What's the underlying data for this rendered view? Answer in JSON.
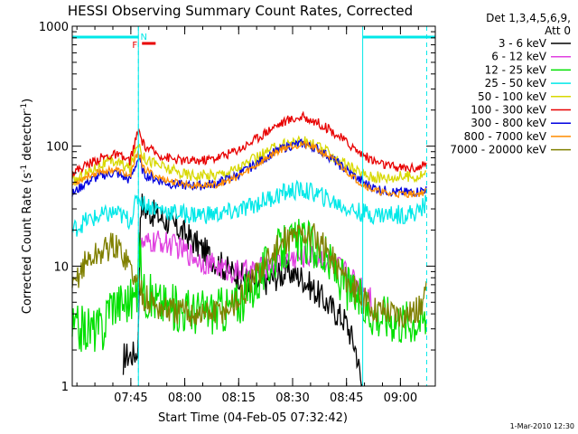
{
  "chart_data": {
    "type": "line",
    "title": "HESSI Observing Summary Count Rates, Corrected",
    "xlabel": "Start Time (04-Feb-05 07:32:42)",
    "ylabel_main": "Corrected Count Rate (s",
    "ylabel_sup1": "-1",
    "ylabel_mid": " detector",
    "ylabel_sup2": "-1",
    "ylabel_end": ")",
    "footer_date": "1-Mar-2010 12:30",
    "y_scale": "log",
    "ylim": [
      1,
      1000
    ],
    "xlim_minutes": [
      -4,
      97
    ],
    "x_tick_labels": [
      {
        "label": "07:45",
        "min": 12.3
      },
      {
        "label": "08:00",
        "min": 27.3
      },
      {
        "label": "08:15",
        "min": 42.3
      },
      {
        "label": "08:30",
        "min": 57.3
      },
      {
        "label": "08:45",
        "min": 72.3
      },
      {
        "label": "09:00",
        "min": 87.3
      }
    ],
    "y_tick_labels": [
      {
        "label": "1",
        "value": 1
      },
      {
        "label": "10",
        "value": 10
      },
      {
        "label": "100",
        "value": 100
      },
      {
        "label": "1000",
        "value": 1000
      }
    ],
    "legend": {
      "placement": "right",
      "header1": "Det 1,3,4,5,6,9,",
      "header2": "Att 0",
      "entries": [
        {
          "label": "3 - 6 keV",
          "color": "#000000"
        },
        {
          "label": "6 - 12 keV",
          "color": "#e040e0"
        },
        {
          "label": "12 - 25 keV",
          "color": "#00e000"
        },
        {
          "label": "25 - 50 keV",
          "color": "#00e8e8"
        },
        {
          "label": "50 - 100 keV",
          "color": "#d8d800"
        },
        {
          "label": "100 - 300 keV",
          "color": "#e80000"
        },
        {
          "label": "300 - 800 keV",
          "color": "#0000e0"
        },
        {
          "label": "800 - 7000 keV",
          "color": "#ff8c00"
        },
        {
          "label": "7000 - 20000 keV",
          "color": "#808000"
        }
      ]
    },
    "night_intervals_minutes": [
      [
        -4,
        14.4
      ],
      [
        76.8,
        97
      ]
    ],
    "saa_markers_minutes": [
      14.4,
      94.6
    ],
    "flag_labels": [
      {
        "label": "F",
        "color": "#e80000",
        "start_min": 14.4,
        "end_min": 19.2
      },
      {
        "label": "N",
        "color": "#00e8e8",
        "start_min": 14.4,
        "end_min": 14.4
      }
    ],
    "series": [
      {
        "name": "3 - 6 keV",
        "color": "#000000",
        "gaps": [
          [
            0,
            10
          ]
        ],
        "points": [
          [
            10.2,
            1.0
          ],
          [
            10.4,
            1.8
          ],
          [
            12,
            1.8
          ],
          [
            14,
            1.9
          ],
          [
            14.4,
            2.5
          ],
          [
            15,
            35
          ],
          [
            16,
            30
          ],
          [
            20,
            26
          ],
          [
            24,
            22
          ],
          [
            28,
            18
          ],
          [
            32,
            14
          ],
          [
            36,
            11
          ],
          [
            40,
            9
          ],
          [
            44,
            8
          ],
          [
            48,
            7
          ],
          [
            52,
            8
          ],
          [
            56,
            9
          ],
          [
            60,
            8
          ],
          [
            64,
            6
          ],
          [
            68,
            4.5
          ],
          [
            72,
            3.5
          ],
          [
            75,
            2
          ],
          [
            76.5,
            1.0
          ],
          [
            76.8,
            1.0
          ]
        ]
      },
      {
        "name": "6 - 12 keV",
        "color": "#e040e0",
        "gaps": [],
        "points": [
          [
            14.4,
            14
          ],
          [
            16,
            15
          ],
          [
            20,
            16
          ],
          [
            24,
            15
          ],
          [
            28,
            13
          ],
          [
            32,
            11
          ],
          [
            36,
            10
          ],
          [
            40,
            9
          ],
          [
            44,
            9
          ],
          [
            48,
            9.5
          ],
          [
            52,
            10.5
          ],
          [
            56,
            11.5
          ],
          [
            60,
            12
          ],
          [
            64,
            12
          ],
          [
            68,
            11
          ],
          [
            72,
            9
          ],
          [
            76,
            7
          ],
          [
            79,
            6
          ],
          [
            79.2,
            5
          ]
        ]
      },
      {
        "name": "12 - 25 keV",
        "color": "#00e000",
        "gaps": [],
        "points": [
          [
            -4,
            3
          ],
          [
            5,
            3
          ],
          [
            6,
            5
          ],
          [
            10,
            5
          ],
          [
            14,
            5.5
          ],
          [
            14.4,
            16
          ],
          [
            16,
            6
          ],
          [
            20,
            5
          ],
          [
            24,
            4.5
          ],
          [
            28,
            4.3
          ],
          [
            32,
            4.2
          ],
          [
            36,
            4.3
          ],
          [
            40,
            4.5
          ],
          [
            44,
            5.5
          ],
          [
            48,
            8
          ],
          [
            52,
            12
          ],
          [
            56,
            15
          ],
          [
            60,
            16
          ],
          [
            64,
            14
          ],
          [
            68,
            10
          ],
          [
            72,
            7
          ],
          [
            76,
            5
          ],
          [
            80,
            4
          ],
          [
            84,
            3.8
          ],
          [
            88,
            3.5
          ],
          [
            92,
            3.6
          ],
          [
            94.6,
            3.5
          ]
        ]
      },
      {
        "name": "25 - 50 keV",
        "color": "#00e8e8",
        "gaps": [],
        "points": [
          [
            -4,
            20
          ],
          [
            0,
            24
          ],
          [
            4,
            26
          ],
          [
            8,
            28
          ],
          [
            12,
            24
          ],
          [
            14.4,
            38
          ],
          [
            16,
            33
          ],
          [
            20,
            30
          ],
          [
            24,
            28
          ],
          [
            28,
            27
          ],
          [
            32,
            27
          ],
          [
            36,
            27
          ],
          [
            40,
            28
          ],
          [
            44,
            30
          ],
          [
            48,
            34
          ],
          [
            52,
            38
          ],
          [
            56,
            42
          ],
          [
            60,
            43
          ],
          [
            64,
            40
          ],
          [
            68,
            35
          ],
          [
            72,
            31
          ],
          [
            76,
            28
          ],
          [
            80,
            27
          ],
          [
            84,
            27
          ],
          [
            88,
            27
          ],
          [
            92,
            28
          ],
          [
            94.6,
            34
          ]
        ]
      },
      {
        "name": "50 - 100 keV",
        "color": "#d8d800",
        "gaps": [],
        "points": [
          [
            -4,
            50
          ],
          [
            0,
            60
          ],
          [
            4,
            70
          ],
          [
            8,
            75
          ],
          [
            12,
            65
          ],
          [
            14.4,
            110
          ],
          [
            16,
            80
          ],
          [
            20,
            70
          ],
          [
            24,
            62
          ],
          [
            28,
            58
          ],
          [
            32,
            57
          ],
          [
            36,
            58
          ],
          [
            40,
            62
          ],
          [
            44,
            70
          ],
          [
            48,
            82
          ],
          [
            52,
            95
          ],
          [
            56,
            107
          ],
          [
            60,
            110
          ],
          [
            64,
            100
          ],
          [
            68,
            85
          ],
          [
            72,
            70
          ],
          [
            76,
            60
          ],
          [
            80,
            55
          ],
          [
            84,
            55
          ],
          [
            88,
            56
          ],
          [
            92,
            56
          ],
          [
            94.6,
            60
          ]
        ]
      },
      {
        "name": "100 - 300 keV",
        "color": "#e80000",
        "gaps": [],
        "points": [
          [
            -4,
            60
          ],
          [
            0,
            70
          ],
          [
            4,
            80
          ],
          [
            8,
            85
          ],
          [
            12,
            75
          ],
          [
            14.4,
            135
          ],
          [
            16,
            100
          ],
          [
            20,
            85
          ],
          [
            24,
            78
          ],
          [
            28,
            75
          ],
          [
            32,
            76
          ],
          [
            36,
            80
          ],
          [
            40,
            88
          ],
          [
            44,
            100
          ],
          [
            48,
            120
          ],
          [
            52,
            145
          ],
          [
            56,
            165
          ],
          [
            60,
            175
          ],
          [
            64,
            160
          ],
          [
            68,
            135
          ],
          [
            72,
            110
          ],
          [
            76,
            88
          ],
          [
            80,
            75
          ],
          [
            84,
            68
          ],
          [
            88,
            66
          ],
          [
            92,
            66
          ],
          [
            94.6,
            70
          ]
        ]
      },
      {
        "name": "300 - 800 keV",
        "color": "#0000e0",
        "gaps": [],
        "points": [
          [
            -4,
            40
          ],
          [
            0,
            50
          ],
          [
            4,
            57
          ],
          [
            8,
            60
          ],
          [
            12,
            52
          ],
          [
            14.4,
            80
          ],
          [
            16,
            58
          ],
          [
            20,
            52
          ],
          [
            24,
            48
          ],
          [
            28,
            47
          ],
          [
            32,
            47
          ],
          [
            36,
            49
          ],
          [
            40,
            54
          ],
          [
            44,
            62
          ],
          [
            48,
            74
          ],
          [
            52,
            88
          ],
          [
            56,
            100
          ],
          [
            60,
            105
          ],
          [
            64,
            96
          ],
          [
            68,
            80
          ],
          [
            72,
            64
          ],
          [
            76,
            52
          ],
          [
            80,
            45
          ],
          [
            84,
            42
          ],
          [
            88,
            41
          ],
          [
            92,
            42
          ],
          [
            94.6,
            44
          ]
        ]
      },
      {
        "name": "800 - 7000 keV",
        "color": "#ff8c00",
        "gaps": [],
        "points": [
          [
            -4,
            48
          ],
          [
            0,
            56
          ],
          [
            4,
            62
          ],
          [
            8,
            64
          ],
          [
            12,
            56
          ],
          [
            14.4,
            92
          ],
          [
            16,
            64
          ],
          [
            20,
            55
          ],
          [
            24,
            50
          ],
          [
            28,
            48
          ],
          [
            32,
            47
          ],
          [
            36,
            48
          ],
          [
            40,
            52
          ],
          [
            44,
            60
          ],
          [
            48,
            72
          ],
          [
            52,
            87
          ],
          [
            56,
            100
          ],
          [
            60,
            104
          ],
          [
            64,
            95
          ],
          [
            68,
            80
          ],
          [
            72,
            63
          ],
          [
            76,
            50
          ],
          [
            80,
            43
          ],
          [
            84,
            40
          ],
          [
            88,
            40
          ],
          [
            92,
            40
          ],
          [
            94.6,
            42
          ]
        ]
      },
      {
        "name": "7000 - 20000 keV",
        "color": "#808000",
        "gaps": [],
        "points": [
          [
            -4,
            6
          ],
          [
            -2,
            9
          ],
          [
            0,
            11
          ],
          [
            4,
            13
          ],
          [
            7,
            15
          ],
          [
            10,
            13
          ],
          [
            12,
            10
          ],
          [
            14,
            7
          ],
          [
            14.4,
            8
          ],
          [
            16,
            5.5
          ],
          [
            20,
            4.5
          ],
          [
            24,
            4.2
          ],
          [
            28,
            4.1
          ],
          [
            32,
            4.0
          ],
          [
            36,
            4.1
          ],
          [
            40,
            4.5
          ],
          [
            44,
            6
          ],
          [
            48,
            9
          ],
          [
            52,
            13
          ],
          [
            56,
            17
          ],
          [
            60,
            19
          ],
          [
            64,
            17
          ],
          [
            68,
            12
          ],
          [
            72,
            8
          ],
          [
            76,
            5.5
          ],
          [
            80,
            4.5
          ],
          [
            84,
            4.2
          ],
          [
            88,
            4.0
          ],
          [
            92,
            4.2
          ],
          [
            94.6,
            6
          ]
        ]
      }
    ]
  }
}
